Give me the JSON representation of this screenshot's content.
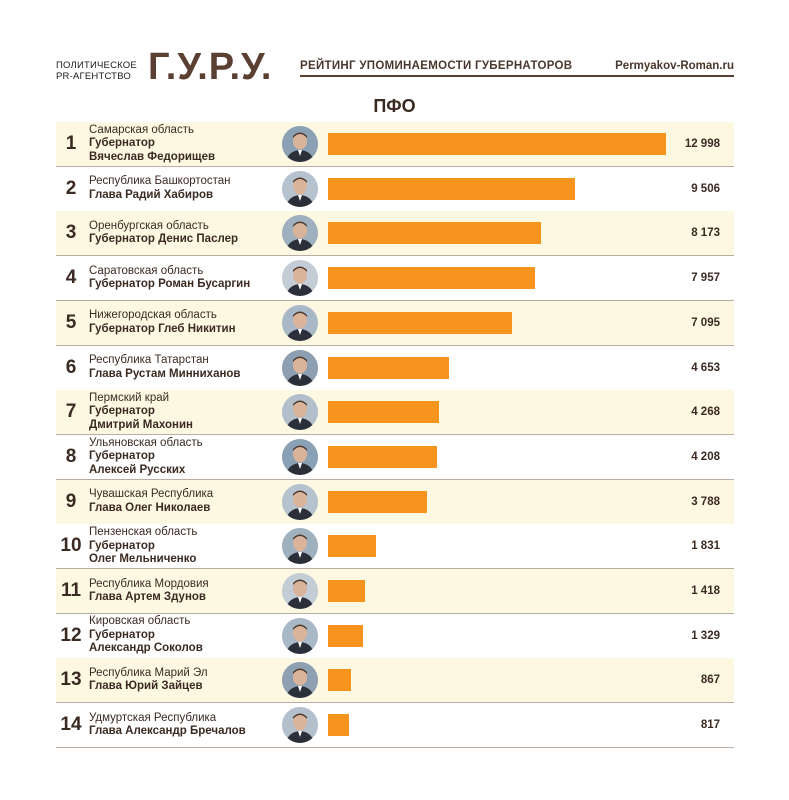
{
  "header": {
    "agency_line1": "ПОЛИТИЧЕСКОЕ",
    "agency_line2": "PR-АГЕНТСТВО",
    "brand": "Г.У.Р.У.",
    "rating_title": "РЕЙТИНГ УПОМИНАЕМОСТИ ГУБЕРНАТОРОВ",
    "site": "Permyakov-Roman.ru",
    "region": "ПФО"
  },
  "colors": {
    "bar": "#f7941d",
    "odd_row": "#fdf8e2",
    "brand": "#5b3f33"
  },
  "chart_data": {
    "type": "bar",
    "orientation": "horizontal",
    "title": "ПФО",
    "xlabel": "",
    "ylabel": "",
    "xlim": [
      0,
      12998
    ],
    "grid": false,
    "rows": [
      {
        "rank": "1",
        "region": "Самарская область",
        "title_lines": [
          "Губернатор",
          "Вячеслав Федорищев"
        ],
        "value": 12998,
        "label": "12 998"
      },
      {
        "rank": "2",
        "region": "Республика Башкортостан",
        "title_lines": [
          "Глава Радий Хабиров"
        ],
        "value": 9506,
        "label": "9 506"
      },
      {
        "rank": "3",
        "region": "Оренбургская область",
        "title_lines": [
          "Губернатор Денис Паслер"
        ],
        "value": 8173,
        "label": "8 173"
      },
      {
        "rank": "4",
        "region": "Саратовская область",
        "title_lines": [
          "Губернатор Роман Бусаргин"
        ],
        "value": 7957,
        "label": "7 957"
      },
      {
        "rank": "5",
        "region": "Нижегородская область",
        "title_lines": [
          "Губернатор Глеб Никитин"
        ],
        "value": 7095,
        "label": "7 095"
      },
      {
        "rank": "6",
        "region": "Республика Татарстан",
        "title_lines": [
          "Глава Рустам Минниханов"
        ],
        "value": 4653,
        "label": "4 653"
      },
      {
        "rank": "7",
        "region": "Пермский край",
        "title_lines": [
          "Губернатор",
          "Дмитрий Махонин"
        ],
        "value": 4268,
        "label": "4 268"
      },
      {
        "rank": "8",
        "region": "Ульяновская область",
        "title_lines": [
          "Губернатор",
          "Алексей Русских"
        ],
        "value": 4208,
        "label": "4 208"
      },
      {
        "rank": "9",
        "region": "Чувашская Республика",
        "title_lines": [
          "Глава Олег Николаев"
        ],
        "value": 3788,
        "label": "3 788"
      },
      {
        "rank": "10",
        "region": "Пензенская область",
        "title_lines": [
          "Губернатор",
          "Олег Мельниченко"
        ],
        "value": 1831,
        "label": "1 831"
      },
      {
        "rank": "11",
        "region": "Республика Мордовия",
        "title_lines": [
          "Глава Артем Здунов"
        ],
        "value": 1418,
        "label": "1 418"
      },
      {
        "rank": "12",
        "region": "Кировская область",
        "title_lines": [
          "Губернатор",
          "Александр Соколов"
        ],
        "value": 1329,
        "label": "1 329"
      },
      {
        "rank": "13",
        "region": "Республика Марий Эл",
        "title_lines": [
          "Глава Юрий Зайцев"
        ],
        "value": 867,
        "label": "867"
      },
      {
        "rank": "14",
        "region": "Удмуртская Республика",
        "title_lines": [
          "Глава Александр Бречалов"
        ],
        "value": 817,
        "label": "817"
      }
    ]
  }
}
